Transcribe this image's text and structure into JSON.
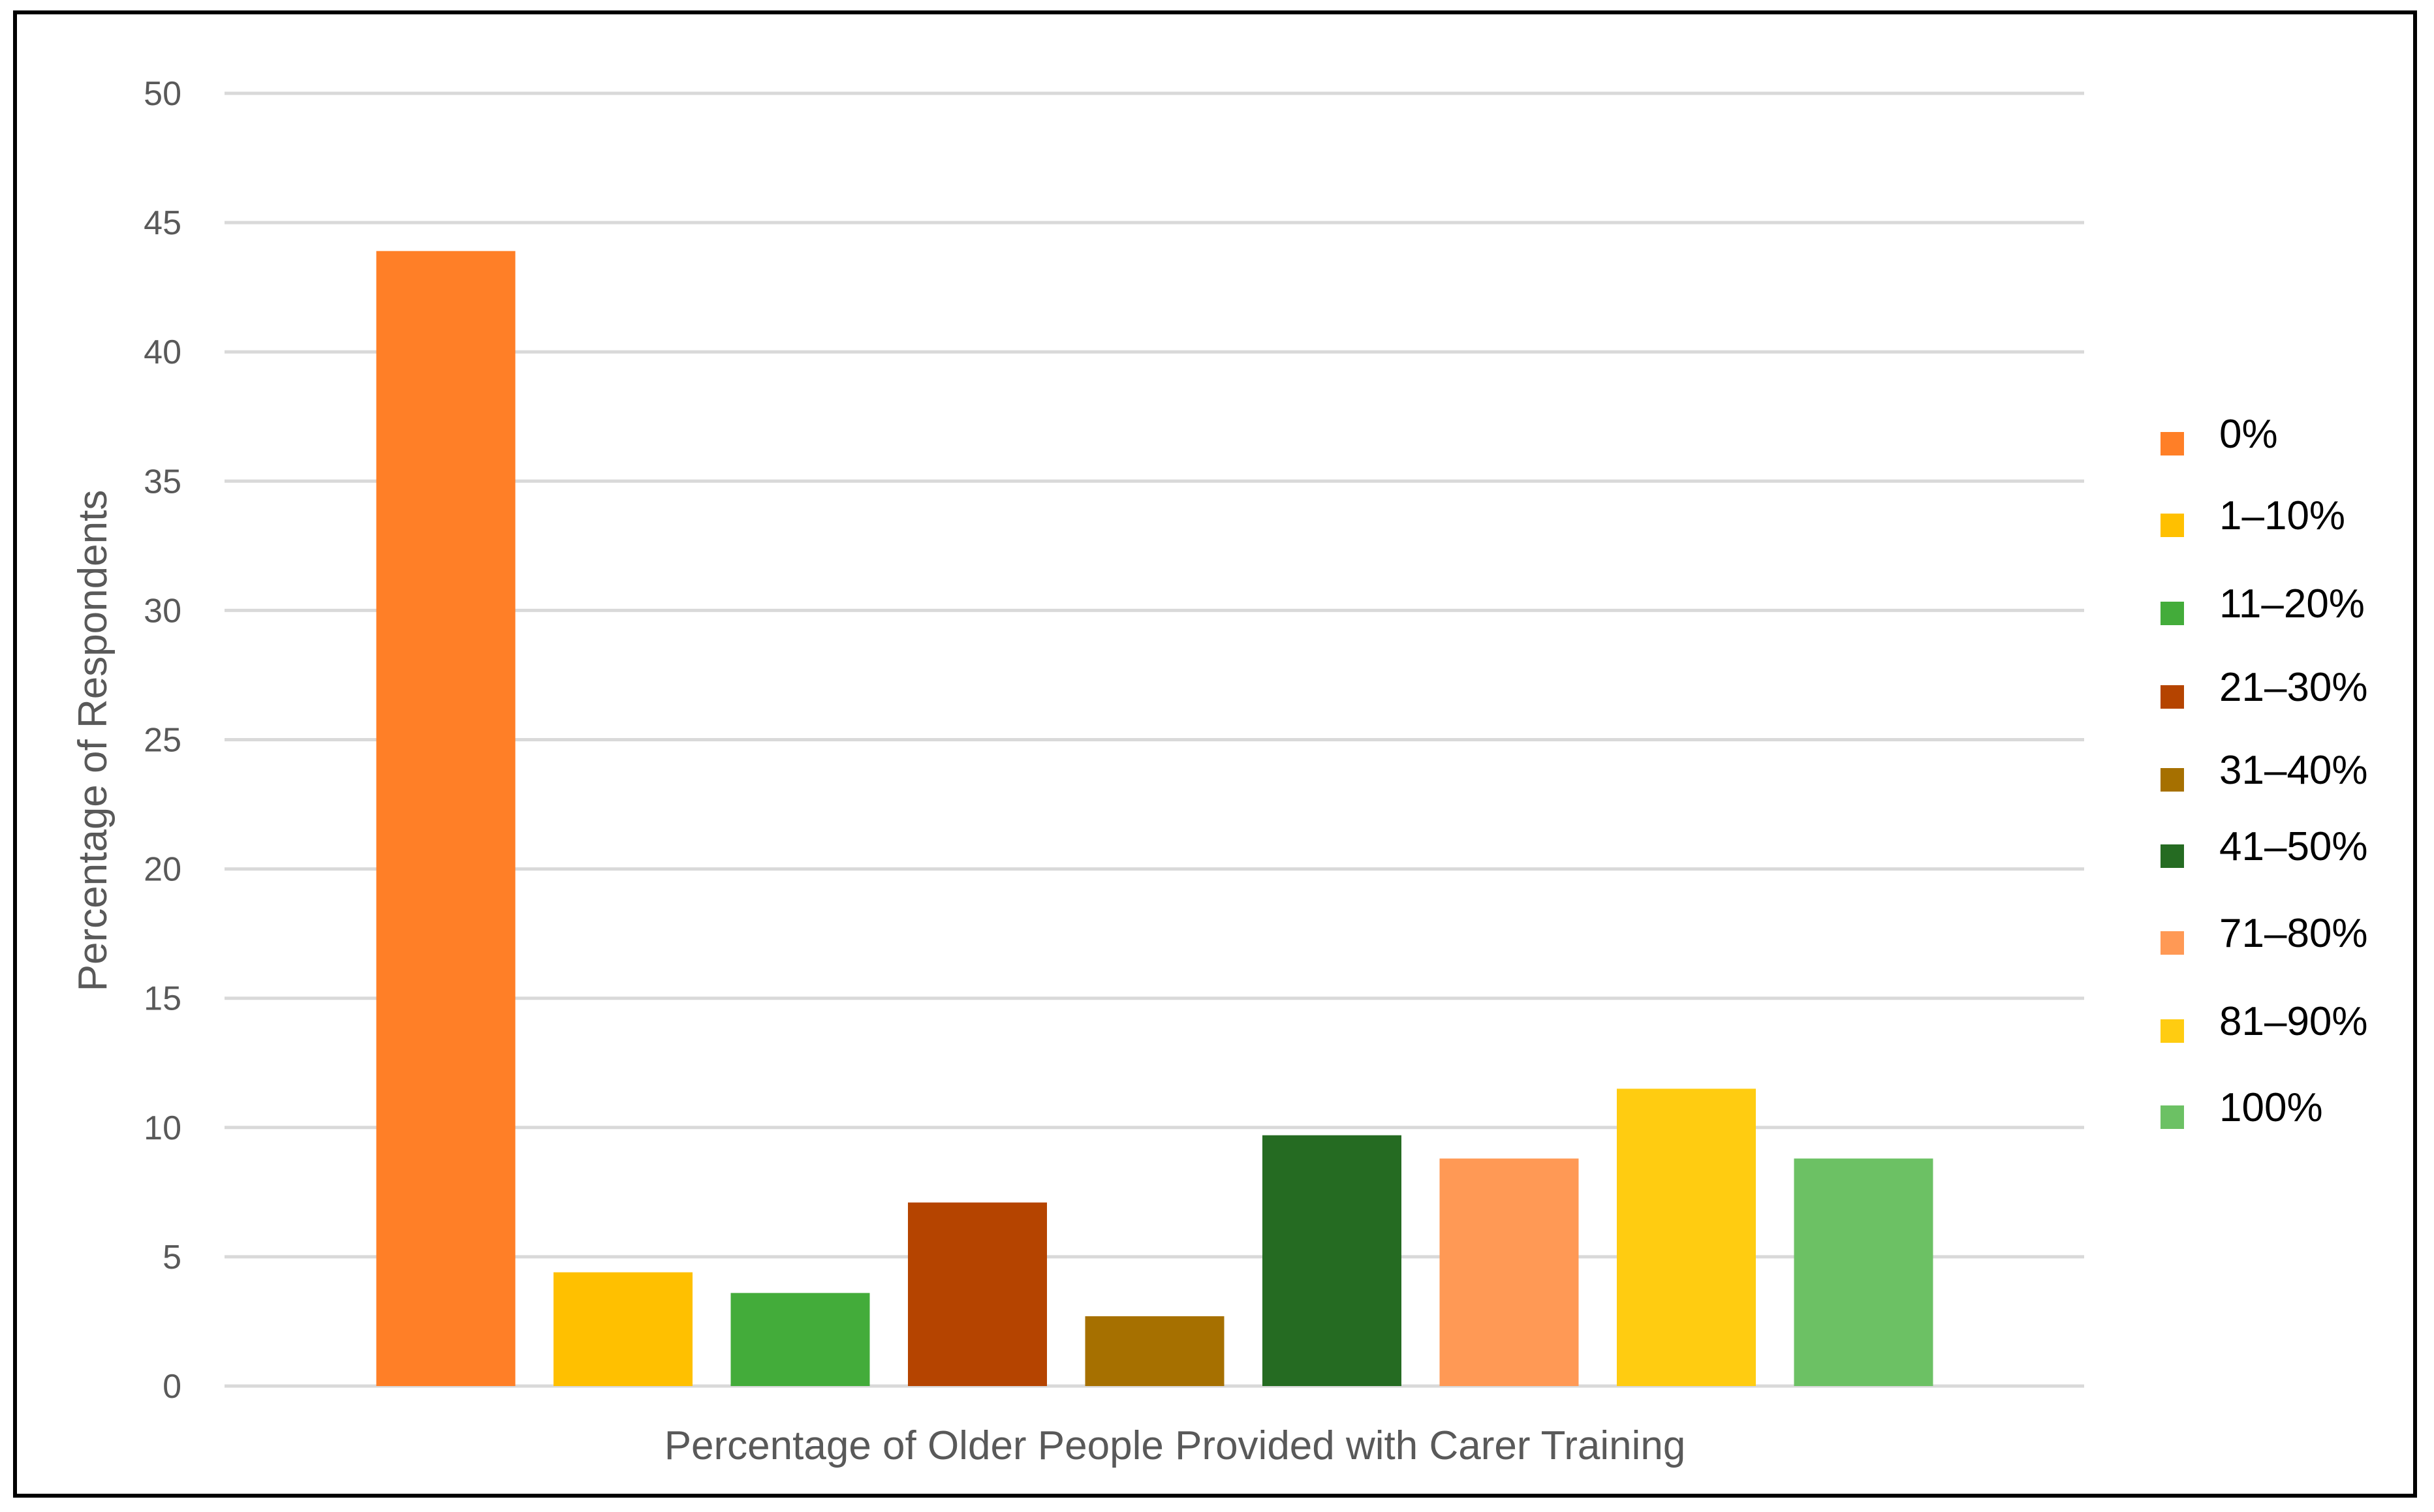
{
  "chart_data": {
    "type": "bar",
    "title": "",
    "xlabel": "Percentage of Older People Provided with Carer Training",
    "ylabel": "Percentage of Respondents",
    "ylim": [
      0,
      50
    ],
    "yticks": [
      0,
      5,
      10,
      15,
      20,
      25,
      30,
      35,
      40,
      45,
      50
    ],
    "grid": true,
    "legend_position": "right",
    "categories": [
      "0%",
      "1–10%",
      "11–20%",
      "21–30%",
      "31–40%",
      "41–50%",
      "71–80%",
      "81–90%",
      "100%"
    ],
    "values": [
      43.9,
      4.4,
      3.6,
      7.1,
      2.7,
      9.7,
      8.8,
      11.5,
      8.8
    ],
    "colors": [
      "#FF7F27",
      "#FFC000",
      "#43AC3A",
      "#B54400",
      "#A67000",
      "#256B22",
      "#FF9955",
      "#FFCC11",
      "#6CC164"
    ]
  }
}
